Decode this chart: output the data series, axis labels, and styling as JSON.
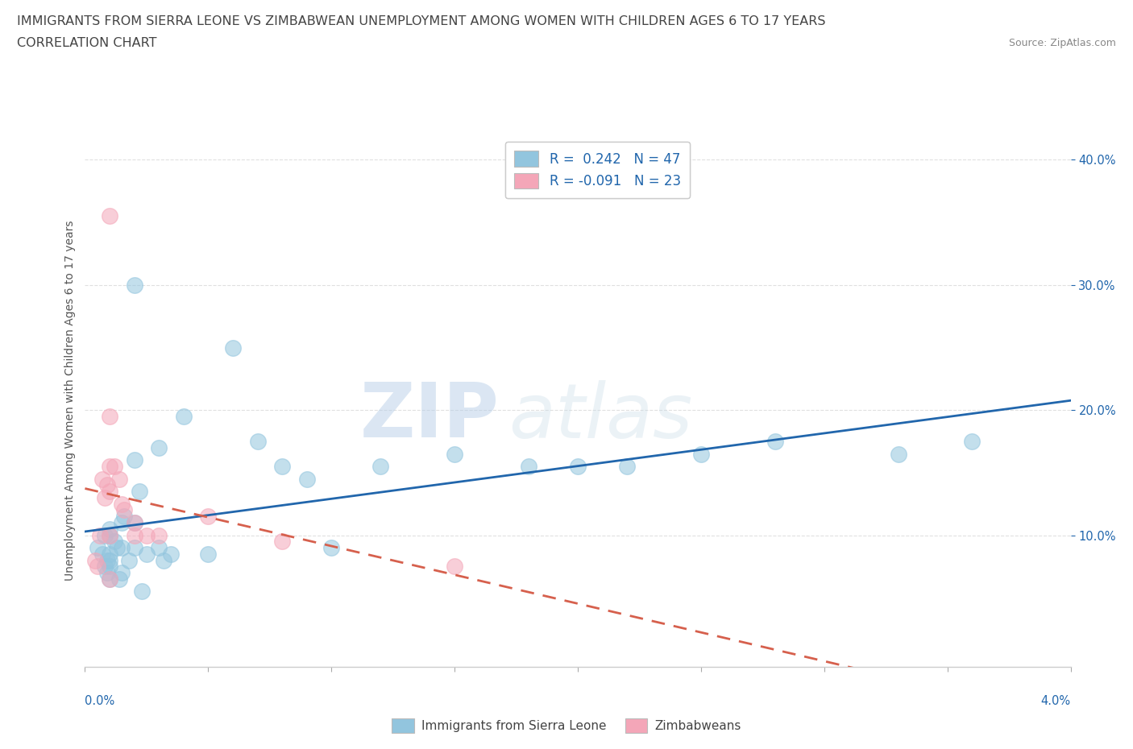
{
  "title_line1": "IMMIGRANTS FROM SIERRA LEONE VS ZIMBABWEAN UNEMPLOYMENT AMONG WOMEN WITH CHILDREN AGES 6 TO 17 YEARS",
  "title_line2": "CORRELATION CHART",
  "source_text": "Source: ZipAtlas.com",
  "xlabel_bottom_left": "0.0%",
  "xlabel_bottom_right": "4.0%",
  "ylabel": "Unemployment Among Women with Children Ages 6 to 17 years",
  "yticks": [
    "10.0%",
    "20.0%",
    "30.0%",
    "40.0%"
  ],
  "ytick_vals": [
    0.1,
    0.2,
    0.3,
    0.4
  ],
  "xlim": [
    0.0,
    0.04
  ],
  "ylim": [
    -0.005,
    0.42
  ],
  "blue_color": "#92c5de",
  "pink_color": "#f4a6b8",
  "blue_line_color": "#2166ac",
  "pink_line_color": "#d6604d",
  "legend_label_r_blue": "R =  0.242   N = 47",
  "legend_label_r_pink": "R = -0.091   N = 23",
  "legend_label_blue": "Immigrants from Sierra Leone",
  "legend_label_pink": "Zimbabweans",
  "watermark_zip": "ZIP",
  "watermark_atlas": "atlas",
  "blue_x": [
    0.0005,
    0.0007,
    0.0008,
    0.0008,
    0.0009,
    0.0009,
    0.001,
    0.001,
    0.001,
    0.001,
    0.001,
    0.001,
    0.0012,
    0.0013,
    0.0014,
    0.0015,
    0.0015,
    0.0015,
    0.0016,
    0.0018,
    0.002,
    0.002,
    0.002,
    0.002,
    0.0022,
    0.0023,
    0.0025,
    0.003,
    0.003,
    0.0032,
    0.0035,
    0.004,
    0.005,
    0.006,
    0.007,
    0.008,
    0.009,
    0.01,
    0.012,
    0.015,
    0.018,
    0.02,
    0.022,
    0.025,
    0.028,
    0.033,
    0.036
  ],
  "blue_y": [
    0.09,
    0.085,
    0.1,
    0.075,
    0.08,
    0.07,
    0.1,
    0.105,
    0.085,
    0.08,
    0.075,
    0.065,
    0.095,
    0.09,
    0.065,
    0.11,
    0.09,
    0.07,
    0.115,
    0.08,
    0.3,
    0.16,
    0.11,
    0.09,
    0.135,
    0.055,
    0.085,
    0.17,
    0.09,
    0.08,
    0.085,
    0.195,
    0.085,
    0.25,
    0.175,
    0.155,
    0.145,
    0.09,
    0.155,
    0.165,
    0.155,
    0.155,
    0.155,
    0.165,
    0.175,
    0.165,
    0.175
  ],
  "pink_x": [
    0.0004,
    0.0005,
    0.0006,
    0.0007,
    0.0008,
    0.0009,
    0.001,
    0.001,
    0.001,
    0.001,
    0.001,
    0.001,
    0.0012,
    0.0014,
    0.0015,
    0.0016,
    0.002,
    0.002,
    0.0025,
    0.003,
    0.005,
    0.008,
    0.015
  ],
  "pink_y": [
    0.08,
    0.075,
    0.1,
    0.145,
    0.13,
    0.14,
    0.355,
    0.195,
    0.155,
    0.135,
    0.1,
    0.065,
    0.155,
    0.145,
    0.125,
    0.12,
    0.11,
    0.1,
    0.1,
    0.1,
    0.115,
    0.095,
    0.075
  ],
  "background_color": "#ffffff",
  "grid_color": "#e0e0e0",
  "title_fontsize": 11.5,
  "subtitle_fontsize": 11.5,
  "axis_label_fontsize": 10,
  "tick_fontsize": 10.5,
  "legend_fontsize": 12
}
